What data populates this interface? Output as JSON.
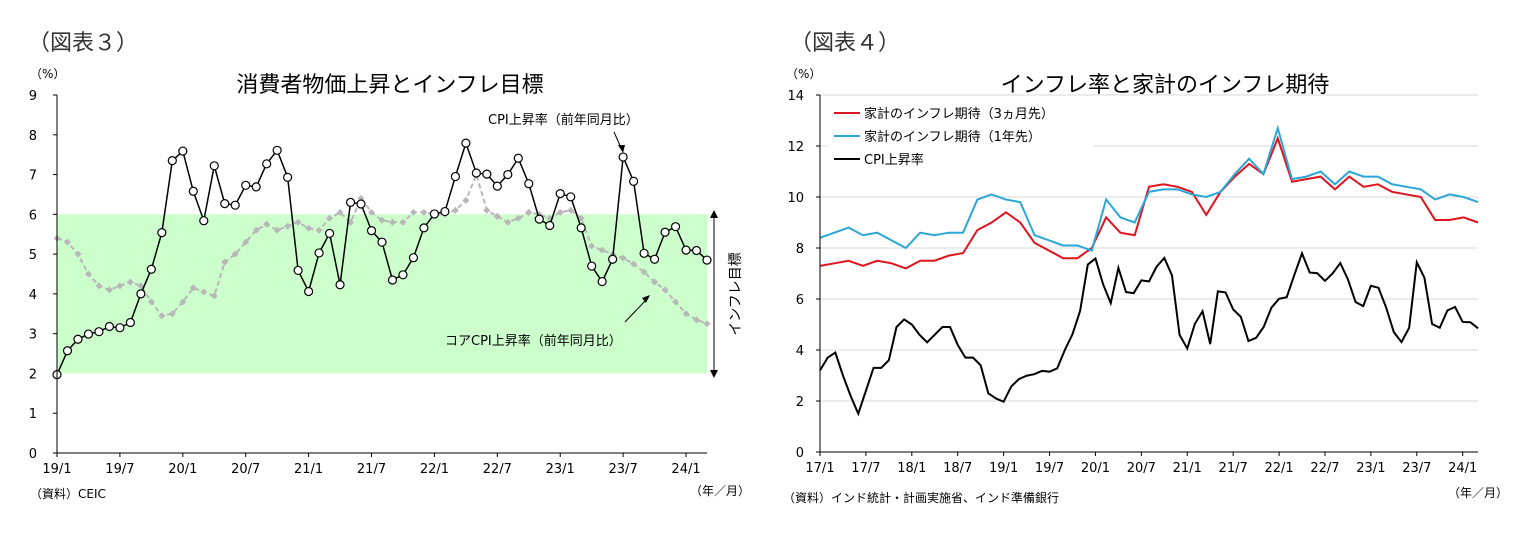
{
  "left": {
    "figure_label": "（図表３）",
    "unit": "（%）",
    "source": "（資料）CEIC",
    "xunit": "（年／月）",
    "target_label": "インフレ目標",
    "annot_cpi": "CPI上昇率（前年同月比）",
    "annot_core": "コアCPI上昇率（前年同月比）"
  },
  "right": {
    "figure_label": "（図表４）",
    "unit": "（%）",
    "source": "（資料）インド統計・計画実施省、インド準備銀行",
    "xunit": "（年／月）"
  },
  "colors": {
    "target_band": "#ccffcc",
    "cpi": "#000000",
    "core": "#b8b8b8",
    "exp3m": "#e0141e",
    "exp1y": "#2aa7d8",
    "grid": "#d9d9d9"
  },
  "chart_data": [
    {
      "type": "line",
      "title": "消費者物価上昇とインフレ目標",
      "ylim": [
        0,
        9
      ],
      "yticks": [
        "0",
        "1",
        "2",
        "3",
        "4",
        "5",
        "6",
        "7",
        "8",
        "9"
      ],
      "xticks": [
        "19/1",
        "19/7",
        "20/1",
        "20/7",
        "21/1",
        "21/7",
        "22/1",
        "22/7",
        "23/1",
        "23/7",
        "24/1"
      ],
      "x_start": "2019/1",
      "target_band": [
        2,
        6
      ],
      "grid": false,
      "series": [
        {
          "name": "CPI上昇率（前年同月比）",
          "values": [
            1.97,
            2.57,
            2.86,
            2.99,
            3.05,
            3.18,
            3.15,
            3.28,
            4.0,
            4.62,
            5.54,
            7.35,
            7.59,
            6.58,
            5.84,
            7.22,
            6.27,
            6.23,
            6.73,
            6.69,
            7.27,
            7.61,
            6.93,
            4.59,
            4.06,
            5.03,
            5.52,
            4.23,
            6.3,
            6.26,
            5.59,
            5.3,
            4.35,
            4.48,
            4.91,
            5.66,
            6.01,
            6.07,
            6.95,
            7.79,
            7.04,
            7.01,
            6.71,
            7.0,
            7.41,
            6.77,
            5.88,
            5.72,
            6.52,
            6.44,
            5.66,
            4.7,
            4.31,
            4.87,
            7.44,
            6.83,
            5.02,
            4.87,
            5.55,
            5.69,
            5.1,
            5.09,
            4.85
          ]
        },
        {
          "name": "コアCPI上昇率（前年同月比）",
          "values": [
            5.4,
            5.3,
            5.0,
            4.5,
            4.2,
            4.1,
            4.2,
            4.3,
            4.2,
            3.8,
            3.45,
            3.5,
            3.8,
            4.15,
            4.05,
            3.95,
            4.8,
            5.0,
            5.3,
            5.6,
            5.75,
            5.6,
            5.7,
            5.8,
            5.65,
            5.6,
            5.9,
            6.05,
            5.8,
            6.4,
            6.05,
            5.85,
            5.8,
            5.8,
            6.05,
            6.05,
            6.0,
            6.0,
            6.1,
            6.35,
            7.0,
            6.1,
            5.95,
            5.8,
            5.9,
            6.05,
            6.0,
            5.9,
            6.05,
            6.1,
            5.9,
            5.2,
            5.1,
            5.0,
            4.9,
            4.75,
            4.55,
            4.3,
            4.1,
            3.8,
            3.5,
            3.35,
            3.25
          ]
        }
      ]
    },
    {
      "type": "line",
      "title": "インフレ率と家計のインフレ期待",
      "ylim": [
        0,
        14
      ],
      "yticks": [
        "0",
        "2",
        "4",
        "6",
        "8",
        "10",
        "12",
        "14"
      ],
      "xticks": [
        "17/1",
        "17/7",
        "18/1",
        "18/7",
        "19/1",
        "19/7",
        "20/1",
        "20/7",
        "21/1",
        "21/7",
        "22/1",
        "22/7",
        "23/1",
        "23/7",
        "24/1"
      ],
      "x_start": "2017/1",
      "grid": true,
      "legend_position": "top-left",
      "series": [
        {
          "name": "家計のインフレ期待（3ヵ月先）",
          "values": [
            7.3,
            7.4,
            7.5,
            7.3,
            7.5,
            7.4,
            7.2,
            7.5,
            7.5,
            7.7,
            7.8,
            8.7,
            9.0,
            9.4,
            9.0,
            8.2,
            7.9,
            7.6,
            7.6,
            8.0,
            9.2,
            8.6,
            8.5,
            10.4,
            10.5,
            10.4,
            10.2,
            9.3,
            10.2,
            10.8,
            11.3,
            10.9,
            12.3,
            10.6,
            10.7,
            10.8,
            10.3,
            10.8,
            10.4,
            10.5,
            10.2,
            10.1,
            10.0,
            9.1,
            9.1,
            9.2,
            9.0
          ]
        },
        {
          "name": "家計のインフレ期待（1年先）",
          "values": [
            8.4,
            8.6,
            8.8,
            8.5,
            8.6,
            8.3,
            8.0,
            8.6,
            8.5,
            8.6,
            8.6,
            9.9,
            10.1,
            9.9,
            9.8,
            8.5,
            8.3,
            8.1,
            8.1,
            7.9,
            9.9,
            9.2,
            9.0,
            10.2,
            10.3,
            10.3,
            10.1,
            10.0,
            10.2,
            10.9,
            11.5,
            10.9,
            12.7,
            10.7,
            10.8,
            11.0,
            10.5,
            11.0,
            10.8,
            10.8,
            10.5,
            10.4,
            10.3,
            9.9,
            10.1,
            10.0,
            9.8
          ]
        },
        {
          "name": "CPI上昇率",
          "values": [
            3.2,
            3.7,
            3.9,
            3.0,
            2.2,
            1.5,
            2.4,
            3.3,
            3.3,
            3.6,
            4.9,
            5.2,
            5.0,
            4.6,
            4.3,
            4.6,
            4.9,
            4.9,
            4.2,
            3.7,
            3.7,
            3.4,
            2.3,
            2.1,
            1.97,
            2.57,
            2.86,
            2.99,
            3.05,
            3.18,
            3.15,
            3.28,
            4.0,
            4.62,
            5.54,
            7.35,
            7.59,
            6.58,
            5.84,
            7.22,
            6.27,
            6.23,
            6.73,
            6.69,
            7.27,
            7.61,
            6.93,
            4.59,
            4.06,
            5.03,
            5.52,
            4.23,
            6.3,
            6.26,
            5.59,
            5.3,
            4.35,
            4.48,
            4.91,
            5.66,
            6.01,
            6.07,
            6.95,
            7.79,
            7.04,
            7.01,
            6.71,
            7.0,
            7.41,
            6.77,
            5.88,
            5.72,
            6.52,
            6.44,
            5.66,
            4.7,
            4.31,
            4.87,
            7.44,
            6.83,
            5.02,
            4.87,
            5.55,
            5.69,
            5.1,
            5.09,
            4.85
          ]
        }
      ]
    }
  ]
}
